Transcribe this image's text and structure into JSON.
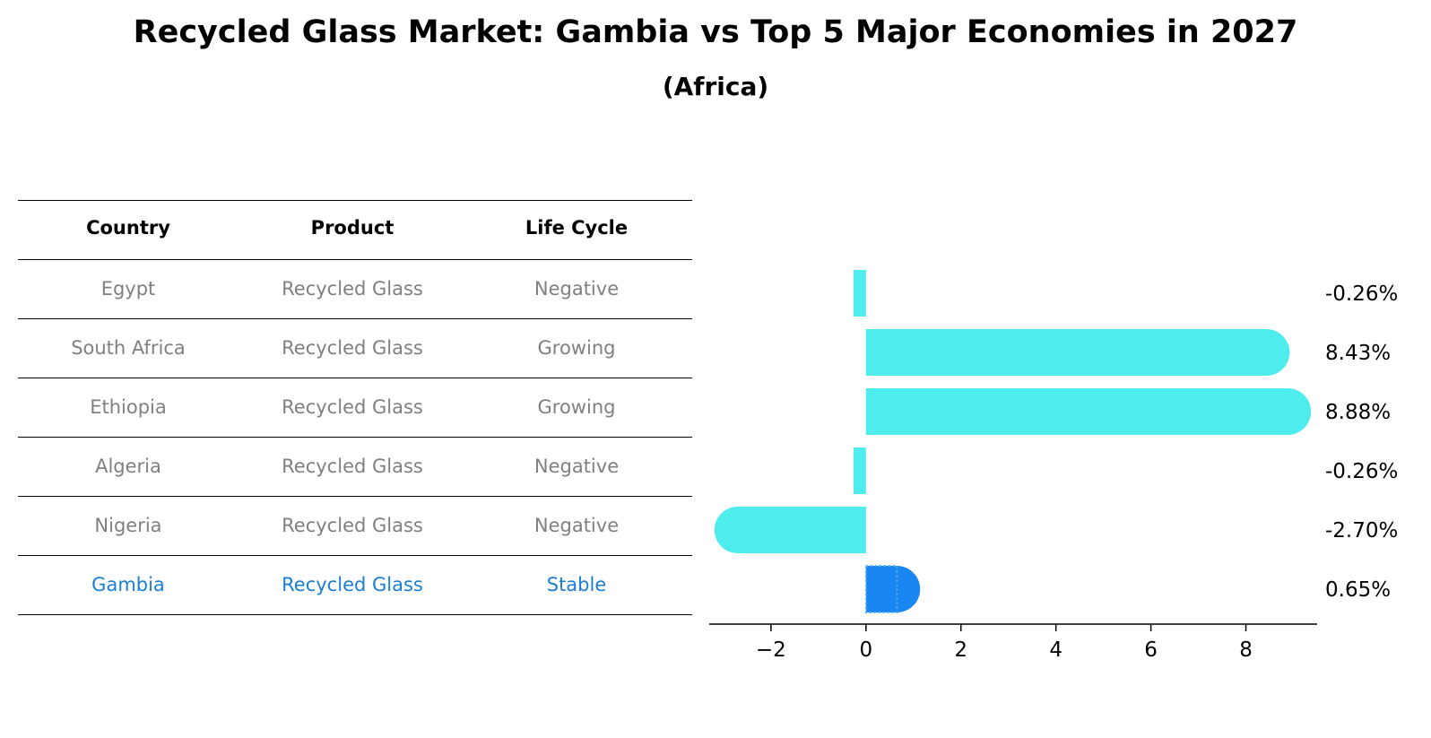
{
  "title": "Recycled Glass Market: Gambia vs Top 5 Major Economies in 2027",
  "subtitle": "(Africa)",
  "table": {
    "headers": [
      "Country",
      "Product",
      "Life Cycle"
    ],
    "rows": [
      [
        "Egypt",
        "Recycled Glass",
        "Negative"
      ],
      [
        "South Africa",
        "Recycled Glass",
        "Growing"
      ],
      [
        "Ethiopia",
        "Recycled Glass",
        "Growing"
      ],
      [
        "Algeria",
        "Recycled Glass",
        "Negative"
      ],
      [
        "Nigeria",
        "Recycled Glass",
        "Negative"
      ],
      [
        "Gambia",
        "Recycled Glass",
        "Stable"
      ]
    ],
    "highlight_row": 5
  },
  "chart_data": {
    "type": "bar",
    "orientation": "horizontal",
    "categories": [
      "Egypt",
      "South Africa",
      "Ethiopia",
      "Algeria",
      "Nigeria",
      "Gambia"
    ],
    "values": [
      -0.26,
      8.43,
      8.88,
      -0.26,
      -2.7,
      0.65
    ],
    "value_labels": [
      "-0.26%",
      "8.43%",
      "8.88%",
      "-0.26%",
      "-2.70%",
      "0.65%"
    ],
    "xlim": [
      -3.3,
      9.5
    ],
    "xticks": [
      -2,
      0,
      2,
      4,
      6,
      8
    ],
    "xtick_labels": [
      "−2",
      "0",
      "2",
      "4",
      "6",
      "8"
    ],
    "highlight_category": "Gambia",
    "colors": {
      "default": "#4eeced",
      "highlight": "#1a86f2"
    }
  }
}
